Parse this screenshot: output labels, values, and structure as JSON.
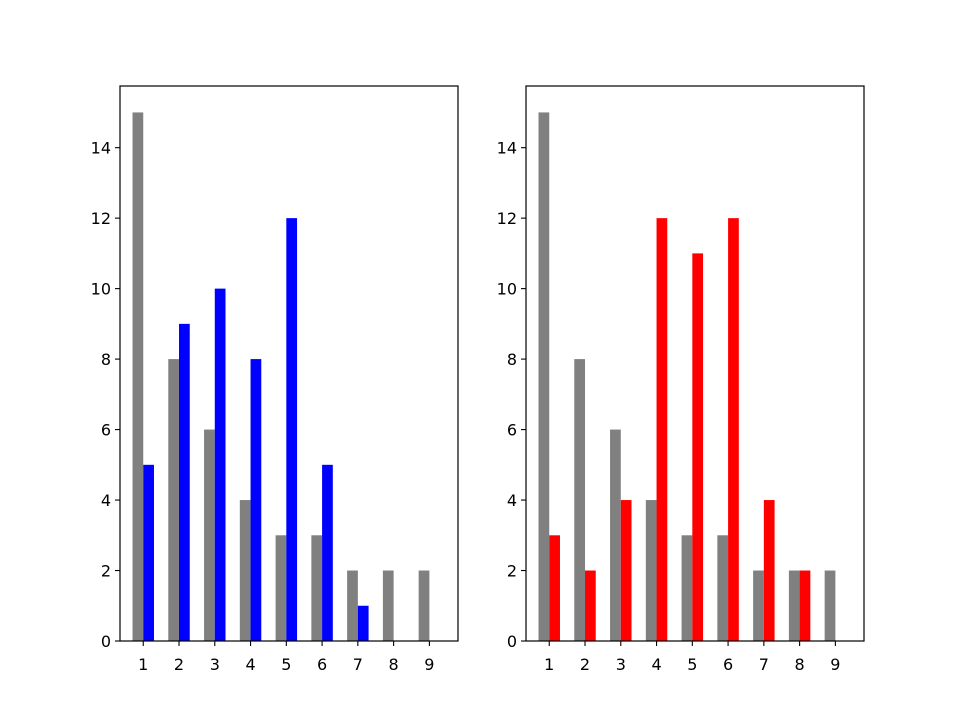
{
  "chart_data": [
    {
      "type": "bar",
      "title": "",
      "xlabel": "",
      "ylabel": "",
      "categories": [
        "1",
        "2",
        "3",
        "4",
        "5",
        "6",
        "7",
        "8",
        "9"
      ],
      "x": [
        1,
        2,
        3,
        4,
        5,
        6,
        7,
        8,
        9
      ],
      "series": [
        {
          "values": [
            15,
            8,
            6,
            4,
            3,
            3,
            2,
            2,
            2
          ],
          "color": "#808080"
        },
        {
          "values": [
            5,
            9,
            10,
            8,
            12,
            5,
            1,
            0,
            0
          ],
          "color": "#0000ff"
        }
      ],
      "ylim": [
        0,
        15.75
      ],
      "xlim": [
        0.35,
        9.8
      ],
      "yticks": [
        0,
        2,
        4,
        6,
        8,
        10,
        12,
        14
      ],
      "grid": false,
      "legend": "none"
    },
    {
      "type": "bar",
      "title": "",
      "xlabel": "",
      "ylabel": "",
      "categories": [
        "1",
        "2",
        "3",
        "4",
        "5",
        "6",
        "7",
        "8",
        "9"
      ],
      "x": [
        1,
        2,
        3,
        4,
        5,
        6,
        7,
        8,
        9
      ],
      "series": [
        {
          "values": [
            15,
            8,
            6,
            4,
            3,
            3,
            2,
            2,
            2
          ],
          "color": "#808080"
        },
        {
          "values": [
            3,
            2,
            4,
            12,
            11,
            12,
            4,
            2,
            0
          ],
          "color": "#ff0000"
        }
      ],
      "ylim": [
        0,
        15.75
      ],
      "xlim": [
        0.35,
        9.8
      ],
      "yticks": [
        0,
        2,
        4,
        6,
        8,
        10,
        12,
        14
      ],
      "grid": false,
      "legend": "none"
    }
  ]
}
